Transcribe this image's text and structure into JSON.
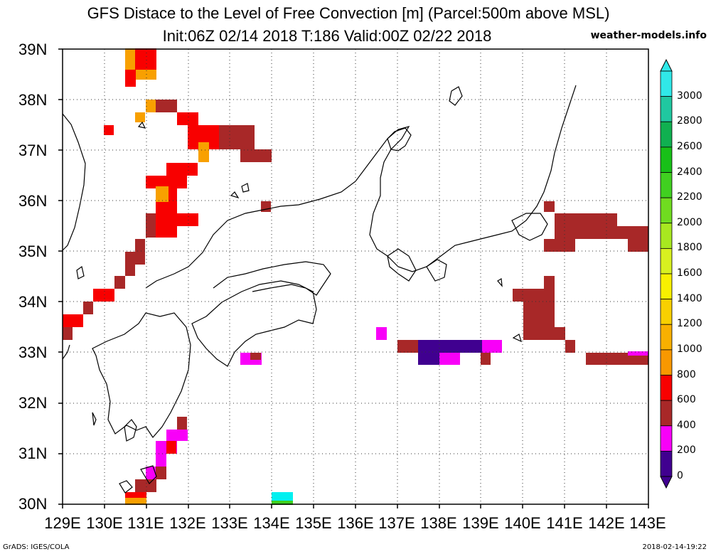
{
  "title_line1": "GFS Distace to the Level of Free Convection [m] (Parcel:500m above MSL)",
  "title_line2": "Init:06Z 02/14 2018 T:186 Valid:00Z 02/22 2018",
  "credit": "weather-models.info",
  "footer_left": "GrADS: IGES/COLA",
  "footer_right": "2018-02-14-19:22",
  "lat_labels": [
    "39N",
    "38N",
    "37N",
    "36N",
    "35N",
    "34N",
    "33N",
    "32N",
    "31N",
    "30N"
  ],
  "lon_labels": [
    "129E",
    "130E",
    "131E",
    "132E",
    "133E",
    "134E",
    "135E",
    "136E",
    "137E",
    "138E",
    "139E",
    "140E",
    "141E",
    "142E",
    "143E"
  ],
  "colorbar": {
    "labels": [
      "3000",
      "2800",
      "2600",
      "2400",
      "2200",
      "2000",
      "1800",
      "1600",
      "1400",
      "1200",
      "1000",
      "800",
      "600",
      "400",
      "200",
      "0"
    ],
    "colors": [
      "#30e8e8",
      "#20c8a0",
      "#10b050",
      "#18c018",
      "#40d020",
      "#70dc20",
      "#a8e820",
      "#d8f020",
      "#f8f000",
      "#f8d000",
      "#f8b000",
      "#f89800",
      "#f80000",
      "#a82828",
      "#f800f8",
      "#400090"
    ]
  },
  "legend_colors": {
    "purple": "#400090",
    "magenta": "#f800f8",
    "brown": "#a82828",
    "red": "#f80000",
    "orange": "#f8a000",
    "yellow": "#f8d000",
    "cyan": "#00f0f0",
    "green": "#40d020"
  }
}
